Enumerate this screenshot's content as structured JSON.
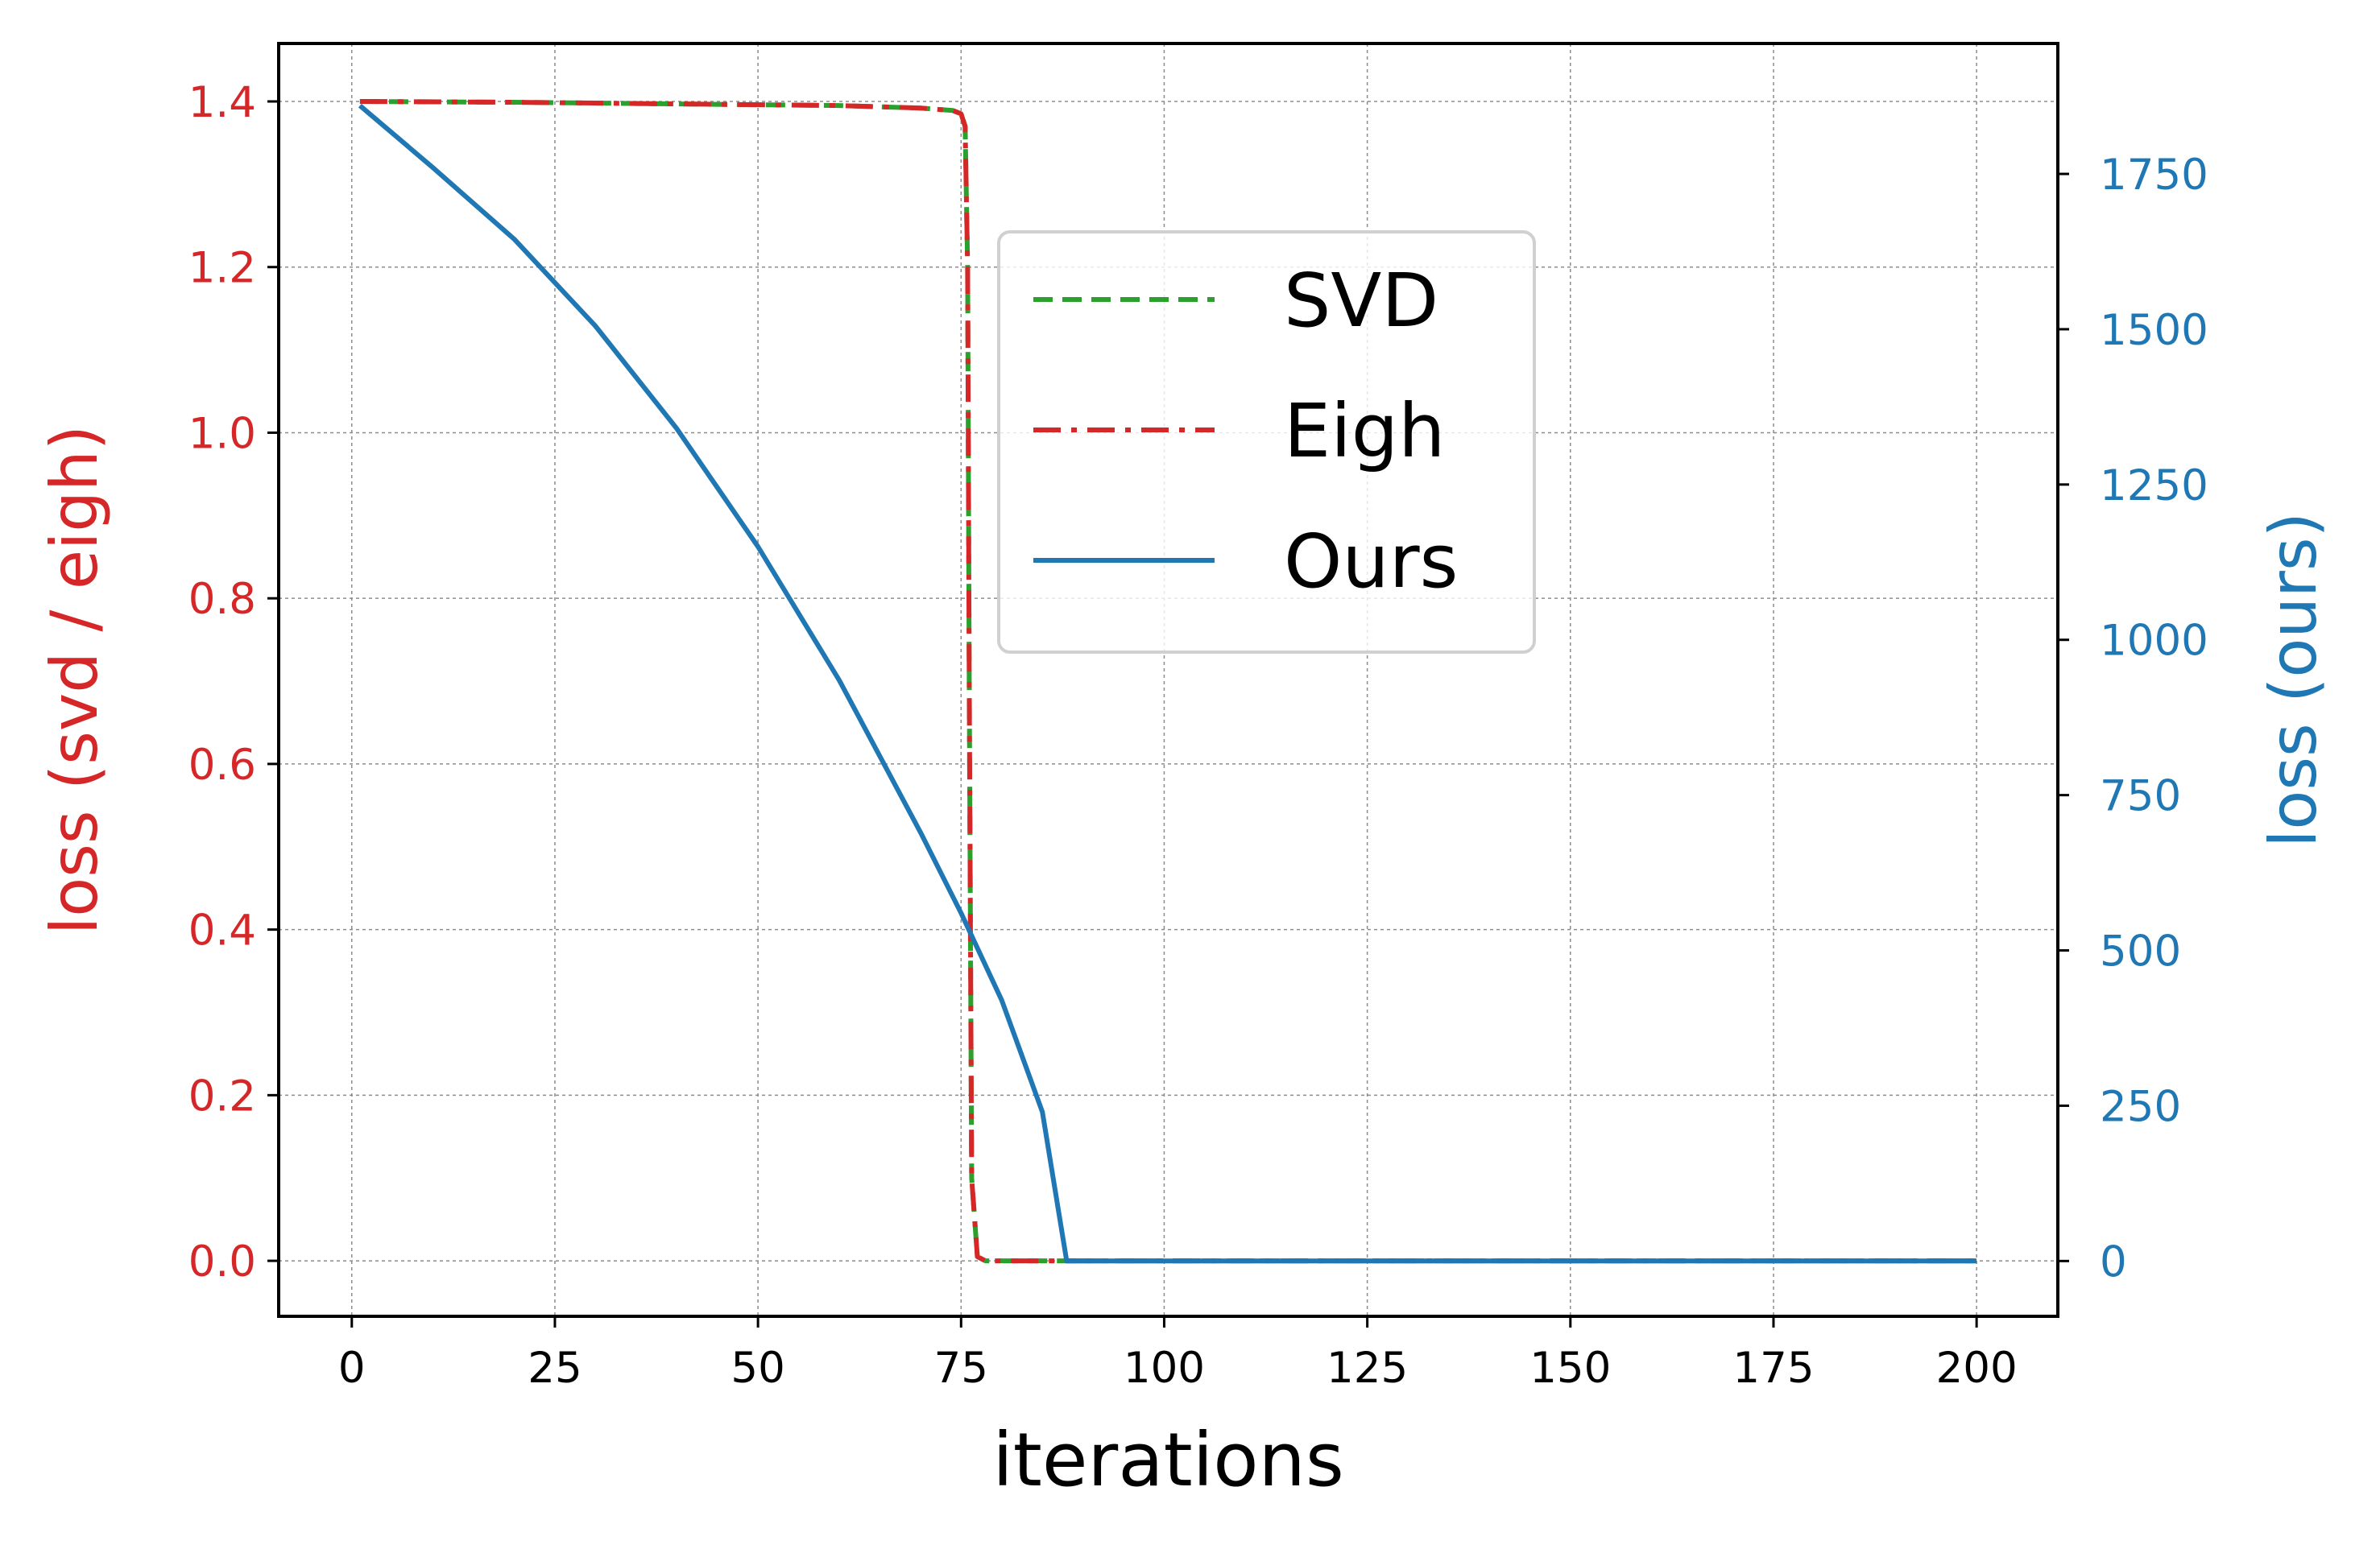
{
  "chart_data": {
    "type": "line",
    "xlabel": "iterations",
    "ylabel_left": "loss (svd / eigh)",
    "ylabel_right": "loss (ours)",
    "xlim": [
      -9,
      210
    ],
    "ylim_left": [
      -0.067,
      1.47
    ],
    "ylim_right": [
      -89,
      1960
    ],
    "xticks": [
      0,
      25,
      50,
      75,
      100,
      125,
      150,
      175,
      200
    ],
    "yticks_left": [
      0.0,
      0.2,
      0.4,
      0.6,
      0.8,
      1.0,
      1.2,
      1.4
    ],
    "yticks_right": [
      0,
      250,
      500,
      750,
      1000,
      1250,
      1500,
      1750
    ],
    "grid": true,
    "legend_position": "upper-center",
    "colors": {
      "svd": "#2ca02c",
      "eigh": "#d62728",
      "ours": "#1f77b4",
      "left_axis": "#d62728",
      "right_axis": "#1f77b4",
      "grid": "#8c8c8c"
    },
    "series": [
      {
        "name": "SVD",
        "axis": "left",
        "style": "dashed",
        "color": "#2ca02c",
        "x": [
          1,
          20,
          40,
          60,
          70,
          74,
          75,
          75.5,
          75.8,
          76,
          76.3,
          77,
          78,
          100,
          150,
          200
        ],
        "y": [
          1.4,
          1.399,
          1.397,
          1.395,
          1.392,
          1.389,
          1.385,
          1.37,
          1.2,
          0.7,
          0.1,
          0.005,
          0.0,
          0.0,
          0.0,
          0.0
        ]
      },
      {
        "name": "Eigh",
        "axis": "left",
        "style": "dashdot",
        "color": "#d62728",
        "x": [
          1,
          20,
          40,
          60,
          70,
          74,
          75,
          75.5,
          75.8,
          76,
          76.3,
          77,
          78,
          100,
          150,
          200
        ],
        "y": [
          1.4,
          1.399,
          1.397,
          1.395,
          1.392,
          1.389,
          1.385,
          1.37,
          1.2,
          0.7,
          0.1,
          0.005,
          0.0,
          0.0,
          0.0,
          0.0
        ]
      },
      {
        "name": "Ours",
        "axis": "right",
        "style": "solid",
        "color": "#1f77b4",
        "x": [
          1,
          10,
          20,
          30,
          40,
          50,
          60,
          70,
          75,
          80,
          85,
          88,
          100,
          150,
          200
        ],
        "y": [
          1860,
          1760,
          1645,
          1505,
          1340,
          1150,
          935,
          690,
          560,
          420,
          240,
          0,
          0,
          0,
          0
        ]
      }
    ]
  }
}
